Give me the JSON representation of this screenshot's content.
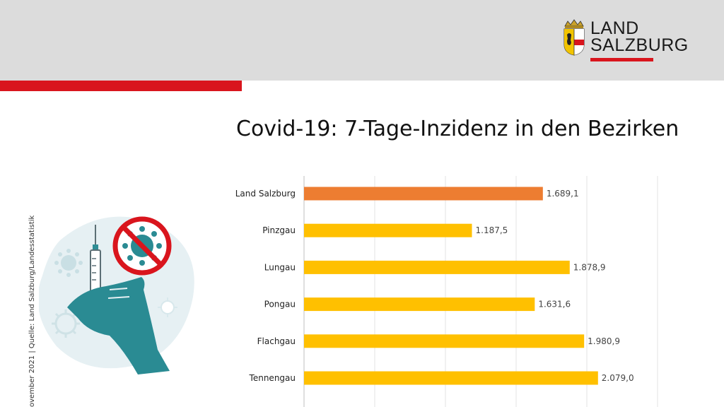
{
  "header": {
    "logo_line1": "LAND",
    "logo_line2": "SALZBURG",
    "band_color": "#dcdcdc",
    "accent_color": "#d9151d"
  },
  "title": "Covid-19: 7-Tage-Inzidenz in den Bezirken",
  "side_note": "ovember 2021 | Quelle: Land Salzburg/Landesstatistik",
  "illustration": {
    "icons": [
      "syringe-icon",
      "hand-icon",
      "virus-crossed-icon",
      "virus-icon"
    ]
  },
  "chart_data": {
    "type": "bar",
    "orientation": "horizontal",
    "title": "Covid-19: 7-Tage-Inzidenz in den Bezirken",
    "categories": [
      "Land Salzburg",
      "Pinzgau",
      "Lungau",
      "Pongau",
      "Flachgau",
      "Tennengau"
    ],
    "values": [
      1689.1,
      1187.5,
      1878.9,
      1631.6,
      1980.9,
      2079.0
    ],
    "value_labels": [
      "1.689,1",
      "1.187,5",
      "1.878,9",
      "1.631,6",
      "1.980,9",
      "2.079,0"
    ],
    "colors": [
      "#ed7d31",
      "#ffc000",
      "#ffc000",
      "#ffc000",
      "#ffc000",
      "#ffc000"
    ],
    "xlim": [
      0,
      2500
    ],
    "gridlines": true,
    "grid_step": 500,
    "legend": "none"
  }
}
